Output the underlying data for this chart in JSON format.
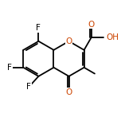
{
  "bg_color": "#ffffff",
  "bond_color": "#000000",
  "atom_colors": {
    "O": "#cc4400",
    "F": "#000000",
    "C": "#000000"
  },
  "line_width": 1.3,
  "font_size": 7.5,
  "figsize": [
    1.52,
    1.52
  ],
  "dpi": 100
}
